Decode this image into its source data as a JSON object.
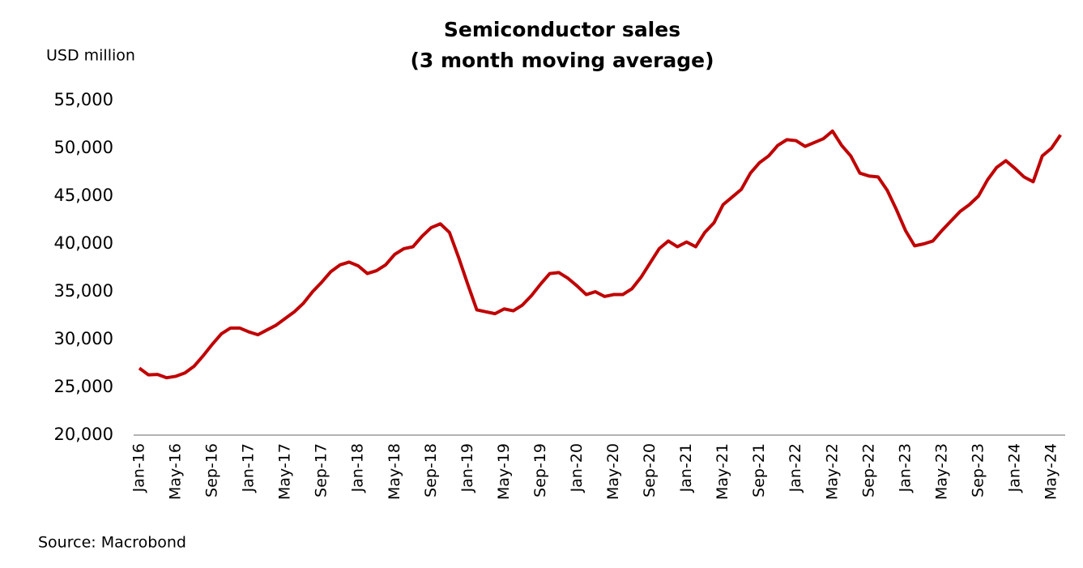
{
  "chart_data": {
    "type": "line",
    "title": "Semiconductor sales",
    "subtitle": "(3 month moving average)",
    "y_label": "USD million",
    "source": "Source: Macrobond",
    "categories": [
      "Jan-16",
      null,
      null,
      null,
      "May-16",
      null,
      null,
      null,
      "Sep-16",
      null,
      null,
      null,
      "Jan-17",
      null,
      null,
      null,
      "May-17",
      null,
      null,
      null,
      "Sep-17",
      null,
      null,
      null,
      "Jan-18",
      null,
      null,
      null,
      "May-18",
      null,
      null,
      null,
      "Sep-18",
      null,
      null,
      null,
      "Jan-19",
      null,
      null,
      null,
      "May-19",
      null,
      null,
      null,
      "Sep-19",
      null,
      null,
      null,
      "Jan-20",
      null,
      null,
      null,
      "May-20",
      null,
      null,
      null,
      "Sep-20",
      null,
      null,
      null,
      "Jan-21",
      null,
      null,
      null,
      "May-21",
      null,
      null,
      null,
      "Sep-21",
      null,
      null,
      null,
      "Jan-22",
      null,
      null,
      null,
      "May-22",
      null,
      null,
      null,
      "Sep-22",
      null,
      null,
      null,
      "Jan-23",
      null,
      null,
      null,
      "May-23",
      null,
      null,
      null,
      "Sep-23",
      null,
      null,
      null,
      "Jan-24",
      null,
      null,
      null,
      "May-24",
      null
    ],
    "series": [
      {
        "name": "Semiconductor sales",
        "color": "#c00000",
        "values": [
          27000,
          26300,
          26350,
          26000,
          26150,
          26500,
          27200,
          28300,
          29500,
          30600,
          31200,
          31200,
          30800,
          30500,
          31000,
          31500,
          32200,
          32900,
          33800,
          35000,
          36000,
          37100,
          37800,
          38100,
          37700,
          36900,
          37200,
          37800,
          38900,
          39500,
          39700,
          40800,
          41700,
          42100,
          41200,
          38600,
          35800,
          33100,
          32900,
          32700,
          33200,
          33000,
          33600,
          34600,
          35800,
          36900,
          37000,
          36400,
          35600,
          34700,
          35000,
          34500,
          34700,
          34700,
          35300,
          36500,
          38000,
          39500,
          40300,
          39700,
          40200,
          39700,
          41200,
          42200,
          44100,
          44900,
          45700,
          47400,
          48500,
          49200,
          50300,
          50900,
          50800,
          50200,
          50600,
          51000,
          51800,
          50300,
          49200,
          47400,
          47100,
          47000,
          45600,
          43600,
          41400,
          39800,
          40000,
          40300,
          41400,
          42400,
          43400,
          44100,
          45000,
          46700,
          48000,
          48700,
          47900,
          47000,
          46500,
          49200,
          50000,
          51400
        ]
      }
    ],
    "ylim": [
      20000,
      55000
    ],
    "yticks": [
      {
        "value": 20000,
        "label": "20,000"
      },
      {
        "value": 25000,
        "label": "25,000"
      },
      {
        "value": 30000,
        "label": "30,000"
      },
      {
        "value": 35000,
        "label": "35,000"
      },
      {
        "value": 40000,
        "label": "40,000"
      },
      {
        "value": 45000,
        "label": "45,000"
      },
      {
        "value": 50000,
        "label": "50,000"
      },
      {
        "value": 55000,
        "label": "55,000"
      }
    ],
    "grid": false
  }
}
